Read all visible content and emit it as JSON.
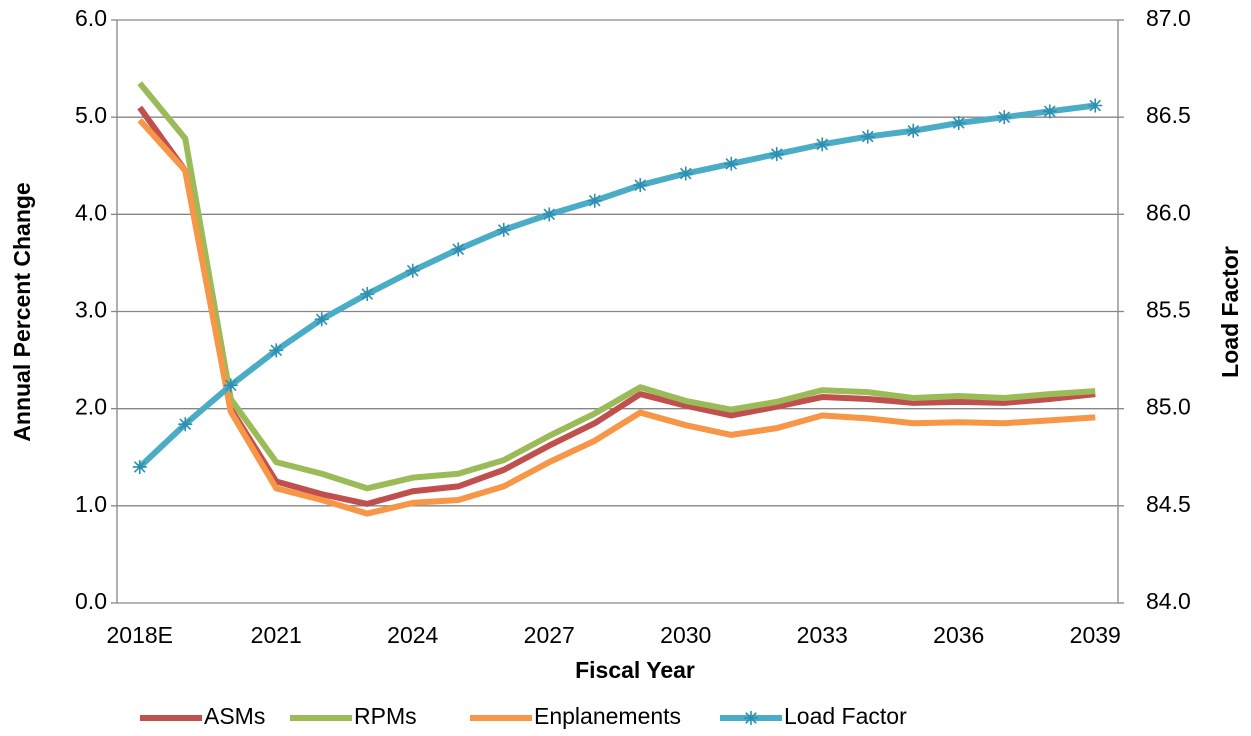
{
  "chart_data": {
    "type": "line",
    "x_label": "Fiscal Year",
    "y_label": "Annual Percent Change",
    "y2_label": "Load Factor",
    "categories": [
      "2018E",
      null,
      null,
      "2021",
      null,
      null,
      "2024",
      null,
      null,
      "2027",
      null,
      null,
      "2030",
      null,
      null,
      "2033",
      null,
      null,
      "2036",
      null,
      null,
      "2039"
    ],
    "series": [
      {
        "name": "ASMs",
        "color": "#c0504d",
        "values": [
          5.1,
          4.45,
          2.0,
          1.25,
          1.12,
          1.02,
          1.15,
          1.2,
          1.37,
          1.62,
          1.85,
          2.15,
          2.03,
          1.93,
          2.02,
          2.12,
          2.1,
          2.06,
          2.07,
          2.06,
          2.1,
          2.15
        ]
      },
      {
        "name": "RPMs",
        "color": "#9bbb59",
        "values": [
          5.35,
          4.78,
          2.1,
          1.45,
          1.33,
          1.18,
          1.29,
          1.33,
          1.47,
          1.72,
          1.95,
          2.22,
          2.08,
          1.99,
          2.07,
          2.19,
          2.17,
          2.11,
          2.13,
          2.11,
          2.15,
          2.18
        ]
      },
      {
        "name": "Enplanements",
        "color": "#f79646",
        "values": [
          4.97,
          4.45,
          1.97,
          1.18,
          1.06,
          0.92,
          1.03,
          1.06,
          1.2,
          1.45,
          1.67,
          1.96,
          1.83,
          1.73,
          1.8,
          1.93,
          1.9,
          1.85,
          1.86,
          1.85,
          1.88,
          1.91
        ]
      },
      {
        "name": "Load Factor",
        "color": "#4bacc6",
        "axis": "y2",
        "marker": "asterisk",
        "values": [
          84.7,
          84.92,
          85.12,
          85.3,
          85.46,
          85.59,
          85.71,
          85.82,
          85.92,
          86.0,
          86.07,
          86.15,
          86.21,
          86.26,
          86.31,
          86.36,
          86.4,
          86.43,
          86.47,
          86.5,
          86.53,
          86.56
        ]
      }
    ],
    "ylim": [
      0,
      6
    ],
    "yticks": [
      {
        "value": 0,
        "label": "0.0"
      },
      {
        "value": 1,
        "label": "1.0"
      },
      {
        "value": 2,
        "label": "2.0"
      },
      {
        "value": 3,
        "label": "3.0"
      },
      {
        "value": 4,
        "label": "4.0"
      },
      {
        "value": 5,
        "label": "5.0"
      },
      {
        "value": 6,
        "label": "6.0"
      }
    ],
    "y2lim": [
      84,
      87
    ],
    "y2ticks": [
      {
        "value": 84,
        "label": "84.0"
      },
      84.5,
      {
        "value": 85,
        "label": "85.0"
      },
      85.5,
      {
        "value": 86,
        "label": "86.0"
      },
      86.5,
      {
        "value": 87,
        "label": "87.0"
      }
    ],
    "grid": true,
    "legend": "bottom"
  }
}
